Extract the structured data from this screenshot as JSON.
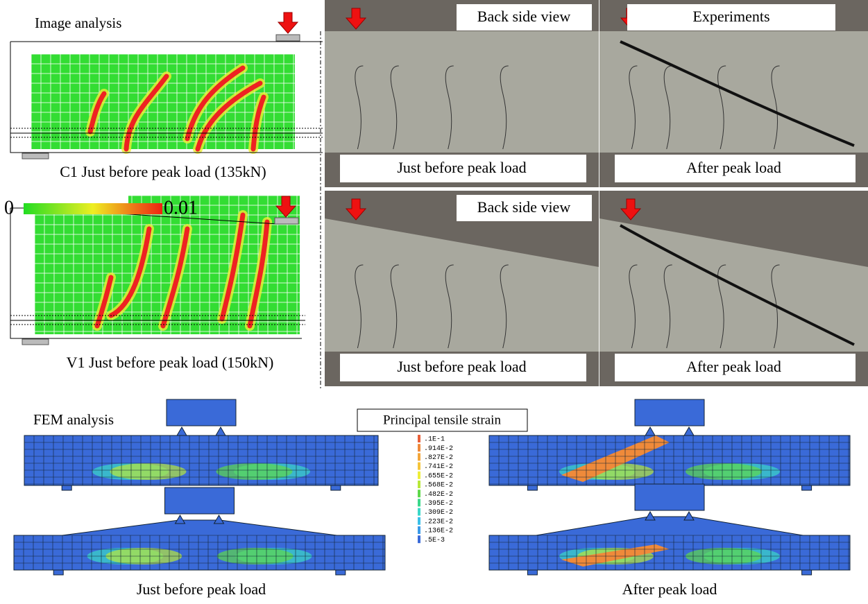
{
  "image_analysis": {
    "title": "Image analysis",
    "c1_caption": "C1 Just before peak load (135kN)",
    "scale_min": "0",
    "scale_max": "0.01",
    "v1_caption": "V1 Just before peak load (150kN)"
  },
  "photos": [
    {
      "top_label": "Back side view",
      "bottom_label": "Just before peak load"
    },
    {
      "top_label": "Experiments",
      "bottom_label": "After peak load"
    },
    {
      "top_label": "Back side view",
      "bottom_label": "Just before peak load"
    },
    {
      "bottom_label": "After peak load"
    }
  ],
  "fem": {
    "title": "FEM analysis",
    "legend_title": "Principal tensile strain",
    "legend": [
      {
        "label": ".1E-1",
        "color": "#e8603a"
      },
      {
        "label": ".914E-2",
        "color": "#ef8a3a"
      },
      {
        "label": ".827E-2",
        "color": "#f3a63a"
      },
      {
        "label": ".741E-2",
        "color": "#f5c53a"
      },
      {
        "label": ".655E-2",
        "color": "#eeee3a"
      },
      {
        "label": ".568E-2",
        "color": "#b8e83a"
      },
      {
        "label": ".482E-2",
        "color": "#5ed84a"
      },
      {
        "label": ".395E-2",
        "color": "#3ad88a"
      },
      {
        "label": ".309E-2",
        "color": "#3ad8c8"
      },
      {
        "label": ".223E-2",
        "color": "#3ac0e8"
      },
      {
        "label": ".136E-2",
        "color": "#3a9ae8"
      },
      {
        "label": ".5E-3",
        "color": "#3a6ad8"
      }
    ],
    "left_caption": "Just before peak load",
    "right_caption": "After peak load"
  }
}
